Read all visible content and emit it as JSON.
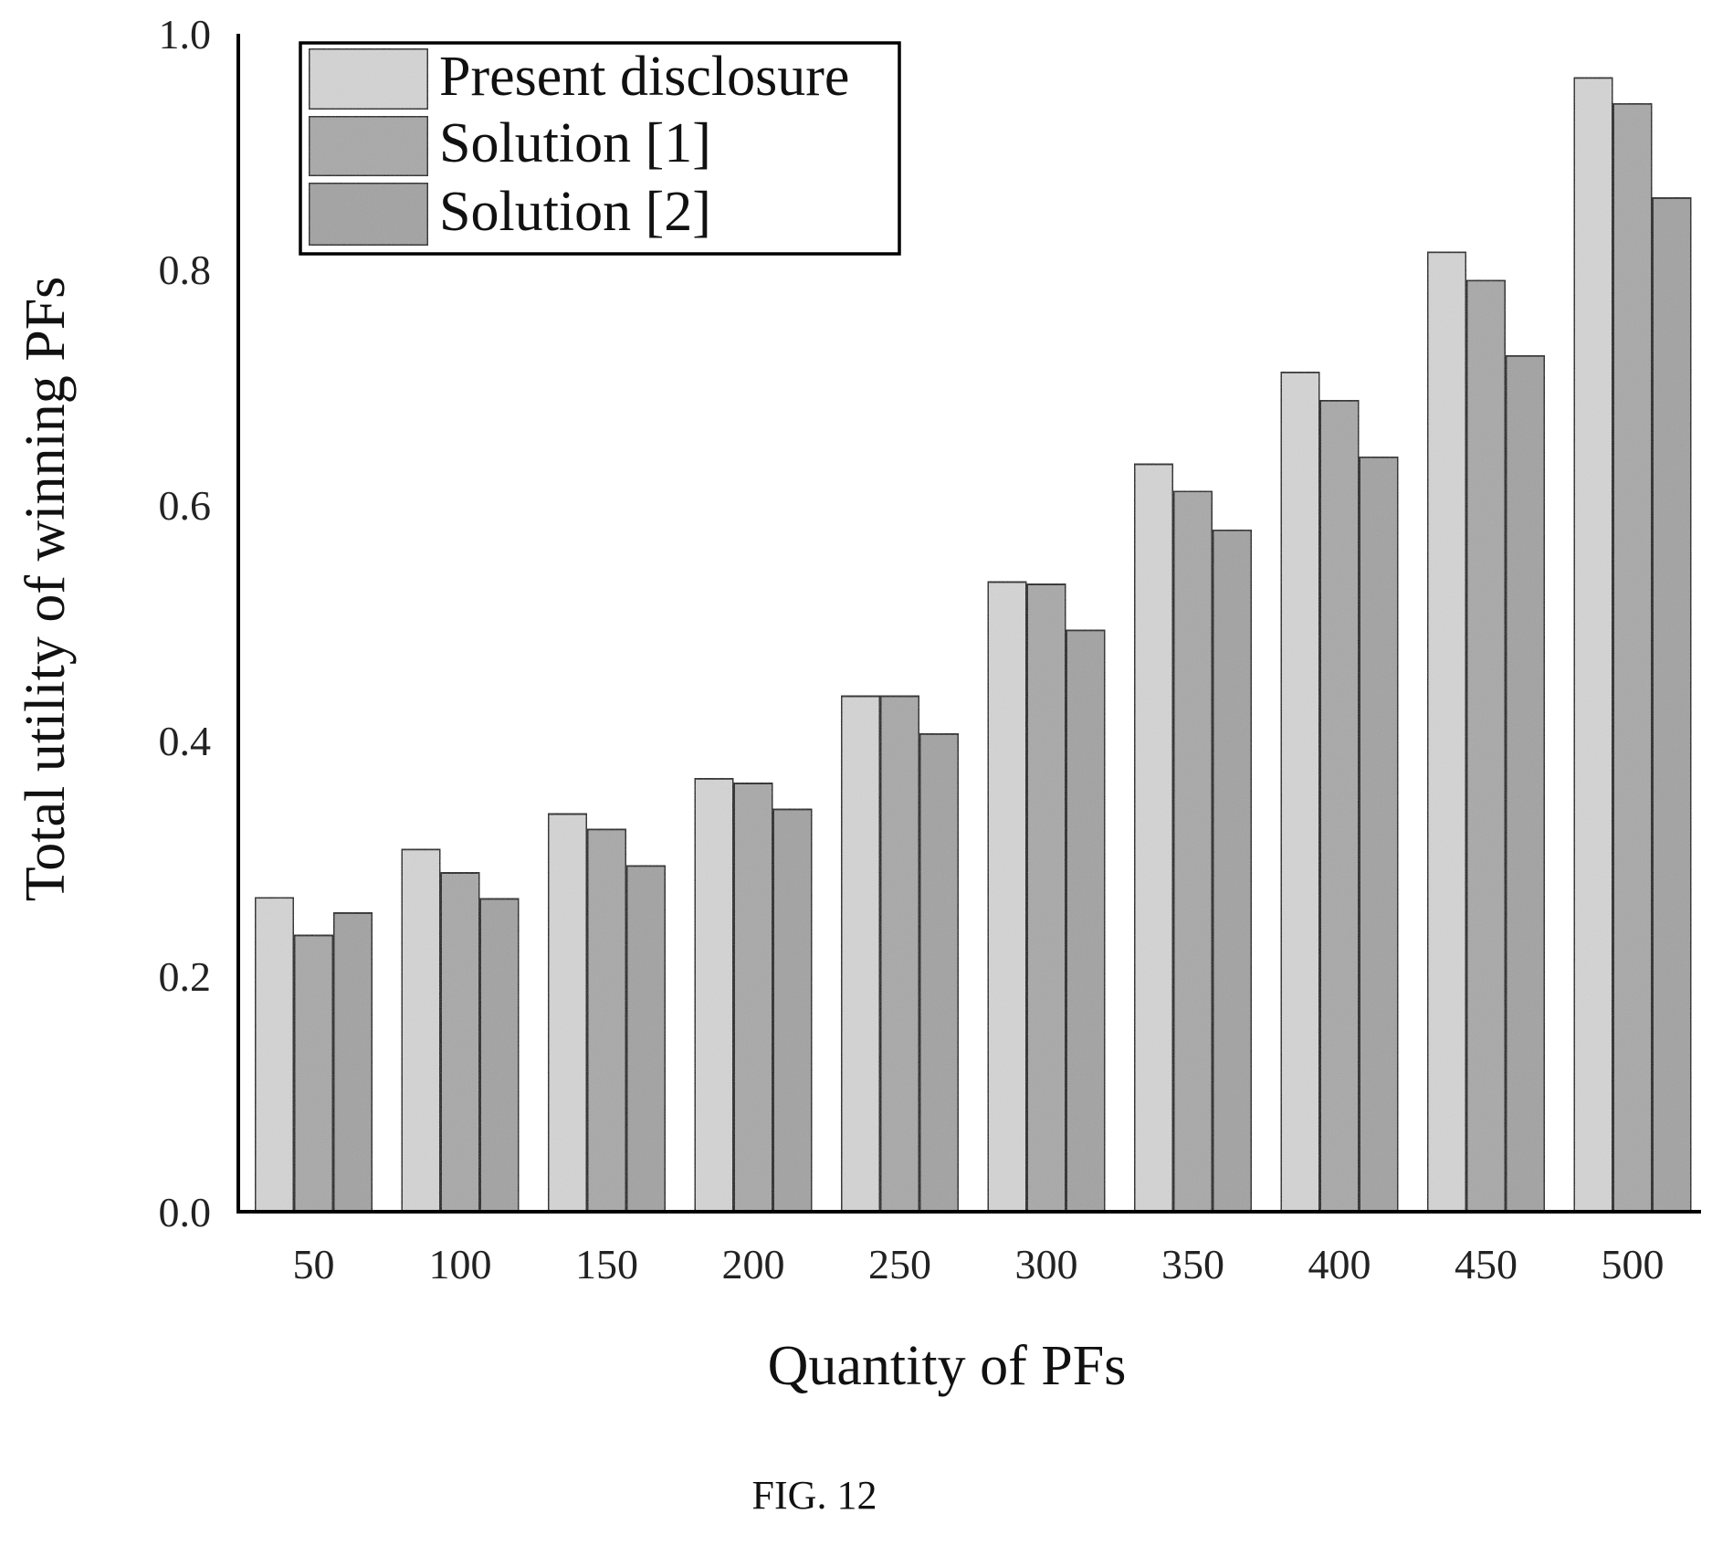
{
  "chart_data": {
    "type": "bar",
    "xlabel": "Quantity of PFs",
    "ylabel": "Total utility of winning PFs",
    "categories": [
      "50",
      "100",
      "150",
      "200",
      "250",
      "300",
      "350",
      "400",
      "450",
      "500"
    ],
    "yticks": [
      "0.0",
      "0.2",
      "0.4",
      "0.6",
      "0.8",
      "1.0"
    ],
    "ylim": [
      0,
      1.0
    ],
    "series": [
      {
        "name": "Present disclosure",
        "color": "#d4d4d4",
        "values": [
          0.267,
          0.308,
          0.338,
          0.368,
          0.438,
          0.535,
          0.635,
          0.713,
          0.815,
          0.963
        ]
      },
      {
        "name": "Solution [1]",
        "color": "#a8a8a8",
        "values": [
          0.235,
          0.288,
          0.325,
          0.364,
          0.438,
          0.533,
          0.612,
          0.689,
          0.791,
          0.941
        ]
      },
      {
        "name": "Solution [2]",
        "color": "#a2a2a2",
        "values": [
          0.254,
          0.266,
          0.294,
          0.342,
          0.406,
          0.494,
          0.579,
          0.641,
          0.727,
          0.861
        ]
      }
    ],
    "grid": false,
    "legend_position": "top-left"
  },
  "caption": "FIG. 12"
}
